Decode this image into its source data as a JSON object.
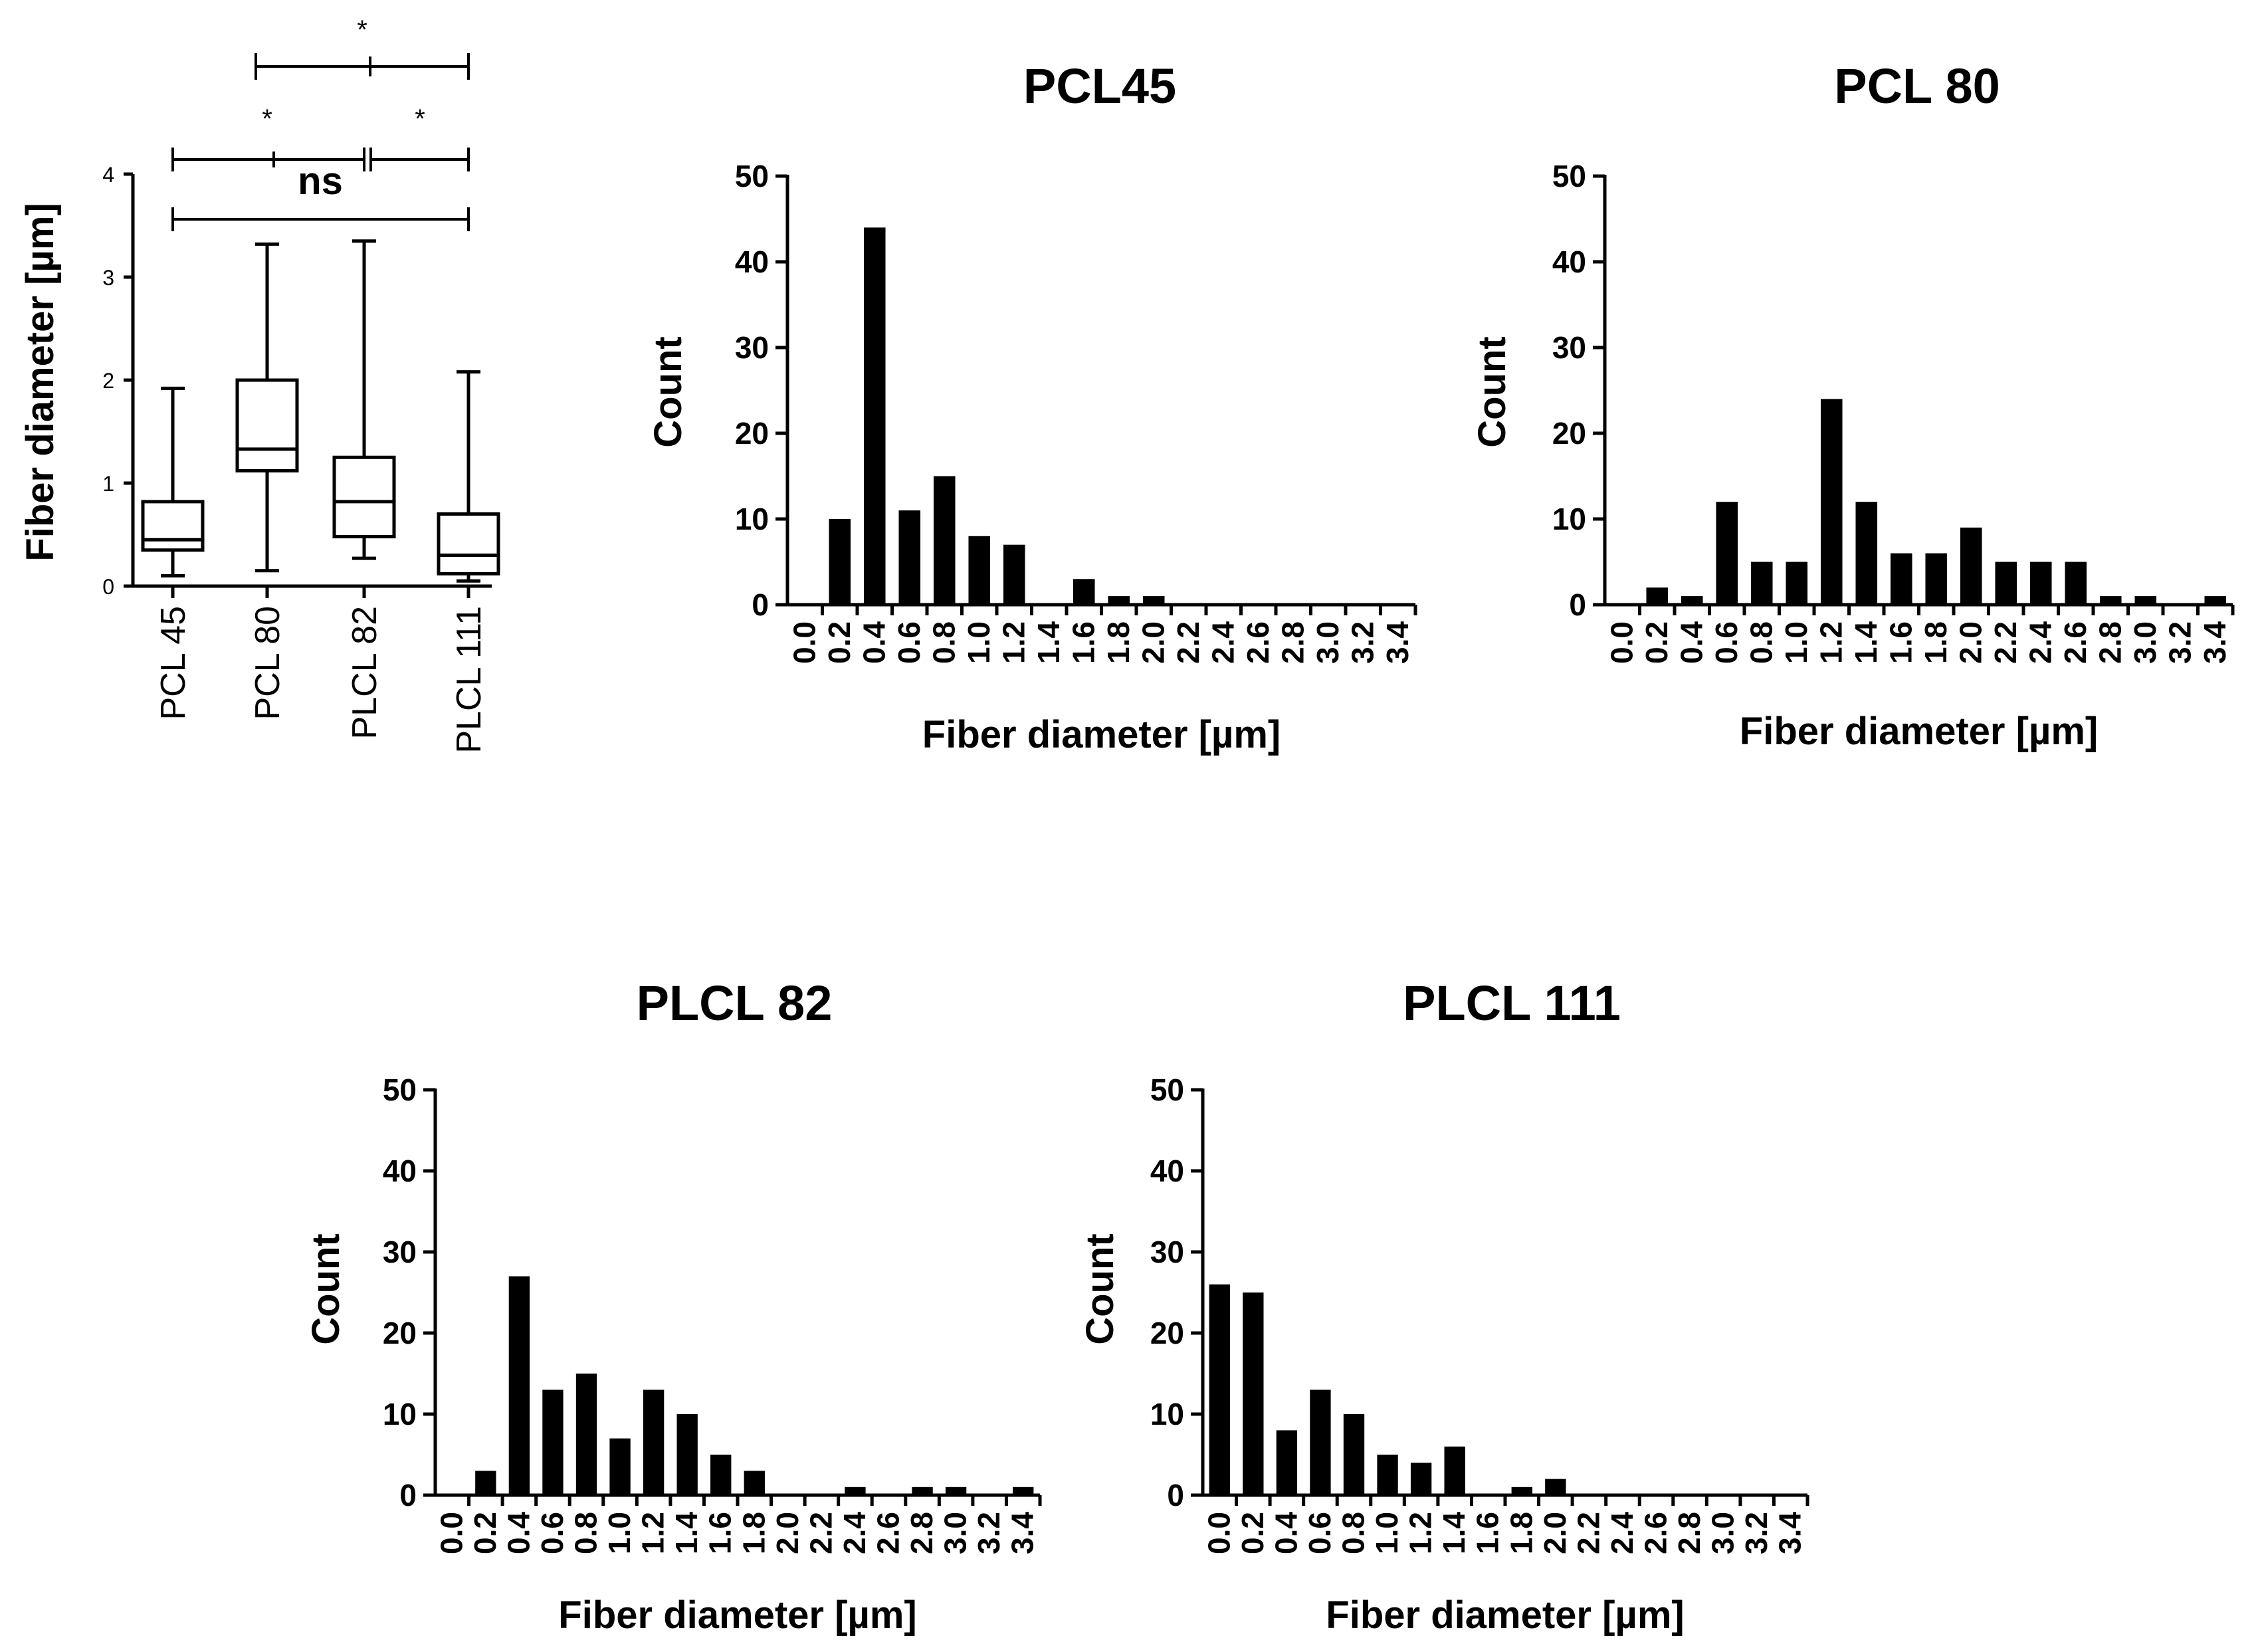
{
  "chart_data": [
    {
      "type": "box",
      "ylabel": "Fiber diameter [µm]",
      "ylim": [
        0,
        4
      ],
      "yticks": [
        "0",
        "1",
        "2",
        "3",
        "4"
      ],
      "categories": [
        "PCL 45",
        "PCL 80",
        "PLCL 82",
        "PLCL 111"
      ],
      "boxes": [
        {
          "name": "PCL 45",
          "min": 0.1,
          "q1": 0.35,
          "median": 0.45,
          "q3": 0.82,
          "max": 1.92
        },
        {
          "name": "PCL 80",
          "min": 0.15,
          "q1": 1.12,
          "median": 1.33,
          "q3": 2.0,
          "max": 3.32
        },
        {
          "name": "PLCL 82",
          "min": 0.27,
          "q1": 0.48,
          "median": 0.82,
          "q3": 1.25,
          "max": 3.35
        },
        {
          "name": "PLCL 111",
          "min": 0.05,
          "q1": 0.12,
          "median": 0.3,
          "q3": 0.7,
          "max": 2.08
        }
      ],
      "significance": {
        "star": "*",
        "ns": "ns"
      }
    },
    {
      "type": "bar",
      "title": "PCL45",
      "xlabel": "Fiber diameter [µm]",
      "ylabel": "Count",
      "ylim": [
        0,
        50
      ],
      "yticks": [
        "0",
        "10",
        "20",
        "30",
        "40",
        "50"
      ],
      "categories": [
        "0.0",
        "0.2",
        "0.4",
        "0.6",
        "0.8",
        "1.0",
        "1.2",
        "1.4",
        "1.6",
        "1.8",
        "2.0",
        "2.2",
        "2.4",
        "2.6",
        "2.8",
        "3.0",
        "3.2",
        "3.4"
      ],
      "values": [
        0,
        10,
        44,
        11,
        15,
        8,
        7,
        0,
        3,
        1,
        1,
        0,
        0,
        0,
        0,
        0,
        0,
        0
      ]
    },
    {
      "type": "bar",
      "title": "PCL 80",
      "xlabel": "Fiber diameter [µm]",
      "ylabel": "Count",
      "ylim": [
        0,
        50
      ],
      "yticks": [
        "0",
        "10",
        "20",
        "30",
        "40",
        "50"
      ],
      "categories": [
        "0.0",
        "0.2",
        "0.4",
        "0.6",
        "0.8",
        "1.0",
        "1.2",
        "1.4",
        "1.6",
        "1.8",
        "2.0",
        "2.2",
        "2.4",
        "2.6",
        "2.8",
        "3.0",
        "3.2",
        "3.4"
      ],
      "values": [
        0,
        2,
        1,
        12,
        5,
        5,
        24,
        12,
        6,
        6,
        9,
        5,
        5,
        5,
        1,
        1,
        0,
        1
      ]
    },
    {
      "type": "bar",
      "title": "PLCL 82",
      "xlabel": "Fiber diameter [µm]",
      "ylabel": "Count",
      "ylim": [
        0,
        50
      ],
      "yticks": [
        "0",
        "10",
        "20",
        "30",
        "40",
        "50"
      ],
      "categories": [
        "0.0",
        "0.2",
        "0.4",
        "0.6",
        "0.8",
        "1.0",
        "1.2",
        "1.4",
        "1.6",
        "1.8",
        "2.0",
        "2.2",
        "2.4",
        "2.6",
        "2.8",
        "3.0",
        "3.2",
        "3.4"
      ],
      "values": [
        0,
        3,
        27,
        13,
        15,
        7,
        13,
        10,
        5,
        3,
        0,
        0,
        1,
        0,
        1,
        1,
        0,
        1
      ]
    },
    {
      "type": "bar",
      "title": "PLCL 111",
      "xlabel": "Fiber diameter [µm]",
      "ylabel": "Count",
      "ylim": [
        0,
        50
      ],
      "yticks": [
        "0",
        "10",
        "20",
        "30",
        "40",
        "50"
      ],
      "categories": [
        "0.0",
        "0.2",
        "0.4",
        "0.6",
        "0.8",
        "1.0",
        "1.2",
        "1.4",
        "1.6",
        "1.8",
        "2.0",
        "2.2",
        "2.4",
        "2.6",
        "2.8",
        "3.0",
        "3.2",
        "3.4"
      ],
      "values": [
        26,
        25,
        8,
        13,
        10,
        5,
        4,
        6,
        0,
        1,
        2,
        0,
        0,
        0,
        0,
        0,
        0,
        0
      ]
    }
  ]
}
